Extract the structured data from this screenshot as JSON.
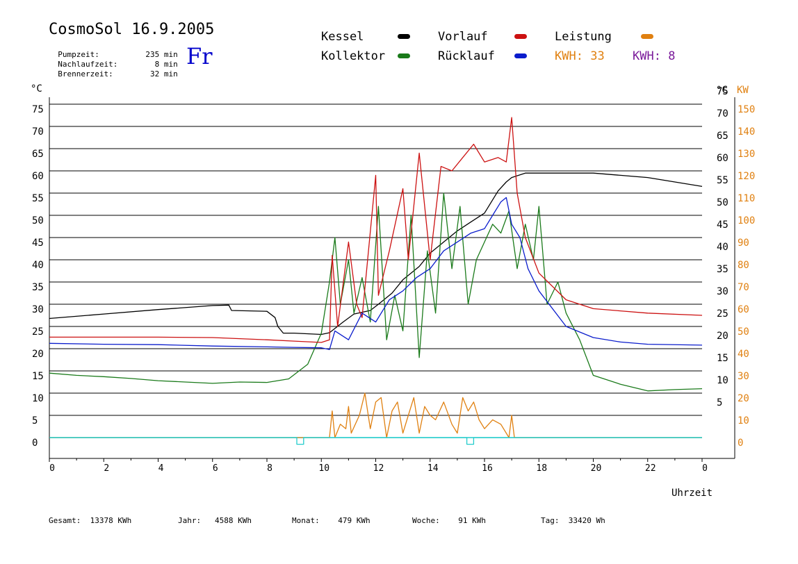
{
  "header": {
    "title": "CosmoSol 16.9.2005",
    "weekday": "Fr",
    "info": [
      {
        "label": "Pumpzeit:",
        "value": "235",
        "unit": "min"
      },
      {
        "label": "Nachlaufzeit:",
        "value": "8",
        "unit": "min"
      },
      {
        "label": "Brennerzeit:",
        "value": "32",
        "unit": "min"
      }
    ]
  },
  "legend": {
    "kessel": "Kessel",
    "kollektor": "Kollektor",
    "vorlauf": "Vorlauf",
    "ruecklauf": "Rücklauf",
    "leistung": "Leistung",
    "kwh1_label": "KWH:",
    "kwh1_value": "33",
    "kwh2_label": "KWH:",
    "kwh2_value": "8"
  },
  "colors": {
    "kessel": "#000000",
    "kollektor": "#1a7a1a",
    "vorlauf": "#cc1111",
    "ruecklauf": "#0a1ccc",
    "leistung": "#e08010",
    "leistung2": "#7a1a9a",
    "pump": "#22cccc",
    "kw_axis": "#e08010"
  },
  "axes": {
    "left_unit": "°C",
    "right_unit_c": "°C",
    "right_unit_kw": "KW",
    "x_label": "Uhrzeit"
  },
  "footer": [
    {
      "label": "Gesamt:",
      "value": "13378 KWh"
    },
    {
      "label": "Jahr:",
      "value": "4588 KWh"
    },
    {
      "label": "Monat:",
      "value": "479 KWh"
    },
    {
      "label": "Woche:",
      "value": "91 KWh"
    },
    {
      "label": "Tag:",
      "value": "33420 Wh"
    }
  ],
  "chart_data": {
    "type": "line",
    "xlabel": "Uhrzeit",
    "ylabel": "°C",
    "xlim": [
      0,
      24
    ],
    "ylim": [
      0,
      80
    ],
    "x_ticks": [
      "0",
      "2",
      "4",
      "6",
      "8",
      "10",
      "12",
      "14",
      "16",
      "18",
      "20",
      "22",
      "0"
    ],
    "left_y_ticks": [
      "0",
      "5",
      "10",
      "15",
      "20",
      "25",
      "30",
      "35",
      "40",
      "45",
      "50",
      "55",
      "60",
      "65",
      "70",
      "75"
    ],
    "right_c_ticks": [
      "5",
      "10",
      "15",
      "20",
      "25",
      "30",
      "35",
      "40",
      "45",
      "50",
      "55",
      "60",
      "65",
      "70",
      "75"
    ],
    "right_kw_ticks": [
      "0",
      "10",
      "20",
      "30",
      "40",
      "50",
      "60",
      "70",
      "80",
      "90",
      "100",
      "110",
      "120",
      "130",
      "140",
      "150"
    ],
    "grid": true,
    "series": [
      {
        "name": "Kessel",
        "x": [
          0,
          2,
          4,
          6,
          6.6,
          6.7,
          8,
          8.3,
          8.4,
          8.6,
          9,
          10,
          10.3,
          10.8,
          11.2,
          11.8,
          12.1,
          12.6,
          13,
          13.6,
          14,
          14.5,
          15,
          15.5,
          16,
          16.5,
          16.8,
          17,
          17.5,
          18,
          19,
          20,
          21,
          22,
          23,
          24
        ],
        "y": [
          26.8,
          27.8,
          28.8,
          29.7,
          29.8,
          28.6,
          28.4,
          27,
          25,
          23.5,
          23.5,
          23.2,
          23.6,
          26,
          27.8,
          28.6,
          30,
          32.5,
          35.5,
          38.5,
          41.5,
          44,
          46.5,
          48.5,
          50.5,
          55.5,
          57.5,
          58.5,
          59.5,
          59.5,
          59.5,
          59.5,
          59,
          58.5,
          57.5,
          56.5
        ]
      },
      {
        "name": "Kollektor",
        "x": [
          0,
          1,
          2,
          3,
          4,
          5,
          6,
          7,
          8,
          8.8,
          9.5,
          10,
          10.3,
          10.5,
          10.7,
          11,
          11.2,
          11.5,
          11.8,
          12.1,
          12.4,
          12.7,
          13,
          13.3,
          13.6,
          13.9,
          14.2,
          14.5,
          14.8,
          15.1,
          15.4,
          15.7,
          16,
          16.3,
          16.6,
          16.9,
          17.2,
          17.5,
          17.8,
          18,
          18.3,
          18.7,
          19,
          19.5,
          20,
          21,
          22,
          23,
          24
        ],
        "y": [
          14.5,
          14,
          13.7,
          13.3,
          12.8,
          12.5,
          12.2,
          12.5,
          12.4,
          13.2,
          16.5,
          23.5,
          35,
          45,
          30,
          40,
          28,
          36,
          26,
          52,
          22,
          32,
          24,
          50,
          18,
          42,
          28,
          55,
          38,
          52,
          30,
          40,
          44,
          48,
          46,
          51,
          38,
          48,
          40,
          52,
          30,
          35,
          28,
          22,
          14,
          12,
          10.5,
          10.8,
          11
        ]
      },
      {
        "name": "Vorlauf",
        "x": [
          0,
          2,
          4,
          6,
          8,
          9,
          10,
          10.3,
          10.4,
          10.6,
          11,
          11.3,
          11.5,
          12,
          12.1,
          12.5,
          13,
          13.2,
          13.6,
          14,
          14.4,
          14.8,
          15.2,
          15.6,
          16,
          16.5,
          16.8,
          17,
          17.2,
          17.5,
          18,
          19,
          20,
          21,
          22,
          24
        ],
        "y": [
          22.6,
          22.6,
          22.6,
          22.5,
          22,
          21.7,
          21.4,
          22,
          41,
          25,
          44,
          30,
          27,
          59,
          32,
          42,
          56,
          40,
          64,
          40,
          61,
          60,
          63,
          66,
          62,
          63,
          62,
          72,
          55,
          45,
          37,
          31,
          29,
          28.5,
          28,
          27.5
        ]
      },
      {
        "name": "Rücklauf",
        "x": [
          0,
          2,
          4,
          6,
          8,
          9,
          10,
          10.3,
          10.5,
          11,
          11.5,
          12,
          12.5,
          13,
          13.5,
          14,
          14.5,
          15,
          15.5,
          16,
          16.3,
          16.6,
          16.8,
          17,
          17.3,
          17.6,
          18,
          19,
          20,
          21,
          22,
          24
        ],
        "y": [
          21.2,
          21,
          20.9,
          20.6,
          20.4,
          20.3,
          20.2,
          19.8,
          24,
          22,
          28,
          26,
          31,
          33,
          36,
          38,
          42,
          44,
          46,
          47,
          50,
          53,
          54,
          48,
          45,
          38,
          33,
          25,
          22.5,
          21.5,
          21,
          20.8
        ]
      },
      {
        "name": "Leistung",
        "x": [
          0,
          10.3,
          10.4,
          10.5,
          10.7,
          10.9,
          11,
          11.1,
          11.4,
          11.6,
          11.8,
          12,
          12.2,
          12.4,
          12.6,
          12.8,
          13,
          13.2,
          13.4,
          13.6,
          13.8,
          14,
          14.2,
          14.5,
          14.8,
          15,
          15.2,
          15.4,
          15.6,
          15.8,
          16,
          16.3,
          16.6,
          16.9,
          17,
          17.1,
          24
        ],
        "y": [
          0,
          0,
          6,
          0,
          3,
          2,
          7,
          1,
          5,
          10,
          2,
          8,
          9,
          0,
          6,
          8,
          1,
          5,
          9,
          1,
          7,
          5,
          4,
          8,
          3,
          1,
          9,
          6,
          8,
          4,
          2,
          4,
          3,
          0,
          5,
          0,
          0
        ]
      },
      {
        "name": "Pumpe",
        "x": [
          0,
          9.1,
          9.1,
          9.35,
          9.35,
          15.35,
          15.35,
          15.6,
          15.6,
          24
        ],
        "y": [
          0,
          0,
          -1.5,
          -1.5,
          0,
          0,
          -1.5,
          -1.5,
          0,
          0
        ]
      }
    ]
  }
}
